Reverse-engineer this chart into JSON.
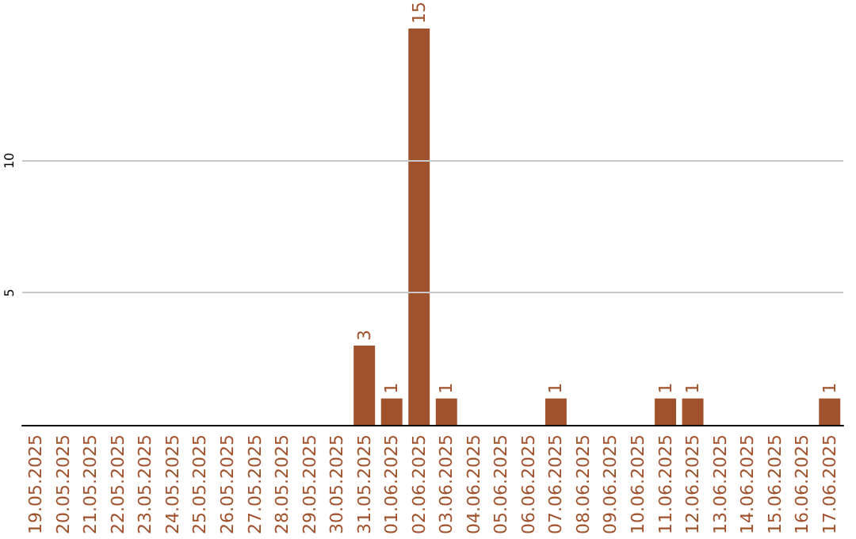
{
  "chart_data": {
    "type": "bar",
    "categories": [
      "19.05.2025",
      "20.05.2025",
      "21.05.2025",
      "22.05.2025",
      "23.05.2025",
      "24.05.2025",
      "25.05.2025",
      "26.05.2025",
      "27.05.2025",
      "28.05.2025",
      "29.05.2025",
      "30.05.2025",
      "31.05.2025",
      "01.06.2025",
      "02.06.2025",
      "03.06.2025",
      "04.06.2025",
      "05.06.2025",
      "06.06.2025",
      "07.06.2025",
      "08.06.2025",
      "09.06.2025",
      "10.06.2025",
      "11.06.2025",
      "12.06.2025",
      "13.06.2025",
      "14.06.2025",
      "15.06.2025",
      "16.06.2025",
      "17.06.2025"
    ],
    "values": [
      0,
      0,
      0,
      0,
      0,
      0,
      0,
      0,
      0,
      0,
      0,
      0,
      3,
      1,
      15,
      1,
      0,
      0,
      0,
      1,
      0,
      0,
      0,
      1,
      1,
      0,
      0,
      0,
      0,
      1
    ],
    "value_labels": [
      null,
      null,
      null,
      null,
      null,
      null,
      null,
      null,
      null,
      null,
      null,
      null,
      "3",
      "1",
      "15",
      "1",
      null,
      null,
      null,
      "1",
      null,
      null,
      null,
      "1",
      "1",
      null,
      null,
      null,
      null,
      "1"
    ],
    "color": "#a0522d",
    "ylim": [
      0,
      15
    ],
    "yticks": [
      5,
      10
    ],
    "grid": "y"
  }
}
